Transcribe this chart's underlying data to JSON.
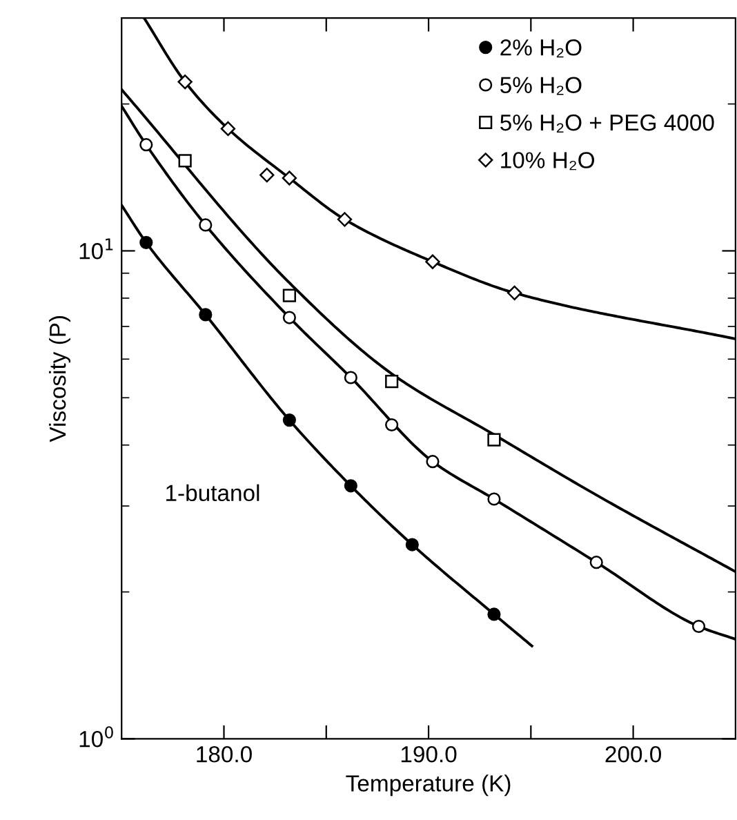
{
  "chart_data": {
    "type": "scatter",
    "xlabel": "Temperature (K)",
    "ylabel": "Viscosity (P)",
    "log": "y",
    "xlim": [
      175,
      205
    ],
    "ylim": [
      1,
      30
    ],
    "xticks": [
      {
        "value": 180,
        "label": "180.0"
      },
      {
        "value": 185,
        "label": null
      },
      {
        "value": 190,
        "label": "190.0"
      },
      {
        "value": 195,
        "label": null
      },
      {
        "value": 200,
        "label": "200.0"
      }
    ],
    "yticks": [
      {
        "value": 1,
        "label": "10$^{0}$"
      },
      {
        "value": 10,
        "label": "10$^{1}$"
      }
    ],
    "grid": false,
    "legend": "top right",
    "annotations": [
      "1-butanol"
    ],
    "series": [
      {
        "name": "2% H₂O",
        "marker": "circle",
        "color": "#000000",
        "x": [
          176.2,
          179.1,
          183.2,
          186.2,
          189.2,
          193.2
        ],
        "values": [
          10.4,
          7.4,
          4.5,
          3.3,
          2.5,
          1.8
        ]
      },
      {
        "name": "5% H₂O",
        "marker": "circle",
        "color": "#ffffff",
        "x": [
          176.2,
          179.1,
          183.2,
          186.2,
          188.2,
          190.2,
          193.2,
          198.2,
          203.2
        ],
        "values": [
          16.5,
          11.3,
          7.3,
          5.5,
          4.4,
          3.7,
          3.1,
          2.3,
          1.7
        ]
      },
      {
        "name": "5% H₂O + PEG 4000",
        "marker": "square",
        "color": "#ffffff",
        "x": [
          178.1,
          183.2,
          188.2,
          193.2
        ],
        "values": [
          15.3,
          8.1,
          5.4,
          4.1
        ]
      },
      {
        "name": "10% H₂O",
        "marker": "diamond",
        "color": "#ffffff",
        "x": [
          178.1,
          180.2,
          182.1,
          183.2,
          185.9,
          190.2,
          194.2
        ],
        "values": [
          22.2,
          17.8,
          14.3,
          14.1,
          11.6,
          9.5,
          8.2
        ]
      },
      {
        "type": "line",
        "color": "#000000",
        "x": [
          175,
          176.2,
          179.1,
          183.2,
          186.2,
          189.2,
          193.2,
          195.05
        ],
        "values": [
          12.4,
          10.4,
          7.4,
          4.5,
          3.3,
          2.5,
          1.8,
          1.55
        ]
      },
      {
        "type": "line",
        "color": "#000000",
        "x": [
          175,
          176.2,
          179.1,
          183.2,
          186.2,
          190.2,
          193.2,
          198.2,
          203.2,
          205
        ],
        "values": [
          19.8,
          16.5,
          11.3,
          7.3,
          5.5,
          3.7,
          3.1,
          2.3,
          1.7,
          1.6
        ]
      },
      {
        "type": "line",
        "color": "#000000",
        "x": [
          175,
          183.2,
          188.2,
          193.2,
          198.2,
          205
        ],
        "values": [
          21.4,
          8.6,
          5.6,
          4.2,
          3.16,
          2.2
        ]
      },
      {
        "type": "line",
        "color": "#000000",
        "x": [
          176.1,
          178.1,
          180.2,
          183.2,
          185.9,
          190.2,
          194.2,
          205
        ],
        "values": [
          30,
          22.2,
          17.8,
          14.1,
          11.6,
          9.5,
          8.2,
          6.6
        ]
      }
    ]
  }
}
